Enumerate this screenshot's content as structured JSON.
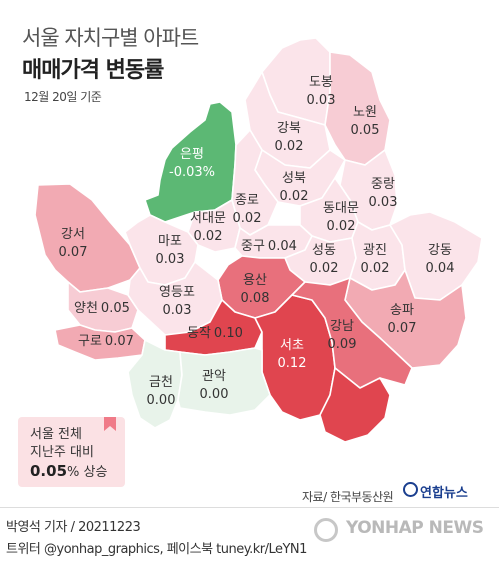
{
  "title": {
    "line1": "서울 자치구별 아파트",
    "line2": "매매가격 변동률",
    "date_note": "12월 20일 기준"
  },
  "legend_colors": {
    "negative": "#5cb874",
    "zero": "#e8f3ea",
    "low": "#fbe4ea",
    "mid": "#f2aab3",
    "high": "#e8707c",
    "top": "#e0454f"
  },
  "districts": [
    {
      "name": "도봉",
      "value": "0.03"
    },
    {
      "name": "노원",
      "value": "0.05"
    },
    {
      "name": "강북",
      "value": "0.02"
    },
    {
      "name": "은평",
      "value": "-0.03%"
    },
    {
      "name": "성북",
      "value": "0.02"
    },
    {
      "name": "중랑",
      "value": "0.03"
    },
    {
      "name": "종로",
      "value": "0.02"
    },
    {
      "name": "서대문",
      "value": "0.02"
    },
    {
      "name": "동대문",
      "value": "0.02"
    },
    {
      "name": "강서",
      "value": "0.07"
    },
    {
      "name": "마포",
      "value": "0.03"
    },
    {
      "name": "중구",
      "value": "0.04"
    },
    {
      "name": "성동",
      "value": "0.02"
    },
    {
      "name": "광진",
      "value": "0.02"
    },
    {
      "name": "강동",
      "value": "0.04"
    },
    {
      "name": "용산",
      "value": "0.08"
    },
    {
      "name": "양천",
      "value": "0.05"
    },
    {
      "name": "영등포",
      "value": "0.03"
    },
    {
      "name": "송파",
      "value": "0.07"
    },
    {
      "name": "구로",
      "value": "0.07"
    },
    {
      "name": "동작",
      "value": "0.10"
    },
    {
      "name": "서초",
      "value": "0.12"
    },
    {
      "name": "강남",
      "value": "0.09"
    },
    {
      "name": "금천",
      "value": "0.00"
    },
    {
      "name": "관악",
      "value": "0.00"
    }
  ],
  "summary": {
    "line1": "서울 전체",
    "line2": "지난주 대비",
    "value": "0.05",
    "suffix": "% 상승"
  },
  "source": "자료/ 한국부동산원",
  "logo": "연합뉴스",
  "footer": {
    "line1": "박영석 기자 /  20211223",
    "line2": "트위터 @yonhap_graphics, 페이스북 tuney.kr/LeYN1"
  },
  "watermark": "YONHAP NEWS"
}
